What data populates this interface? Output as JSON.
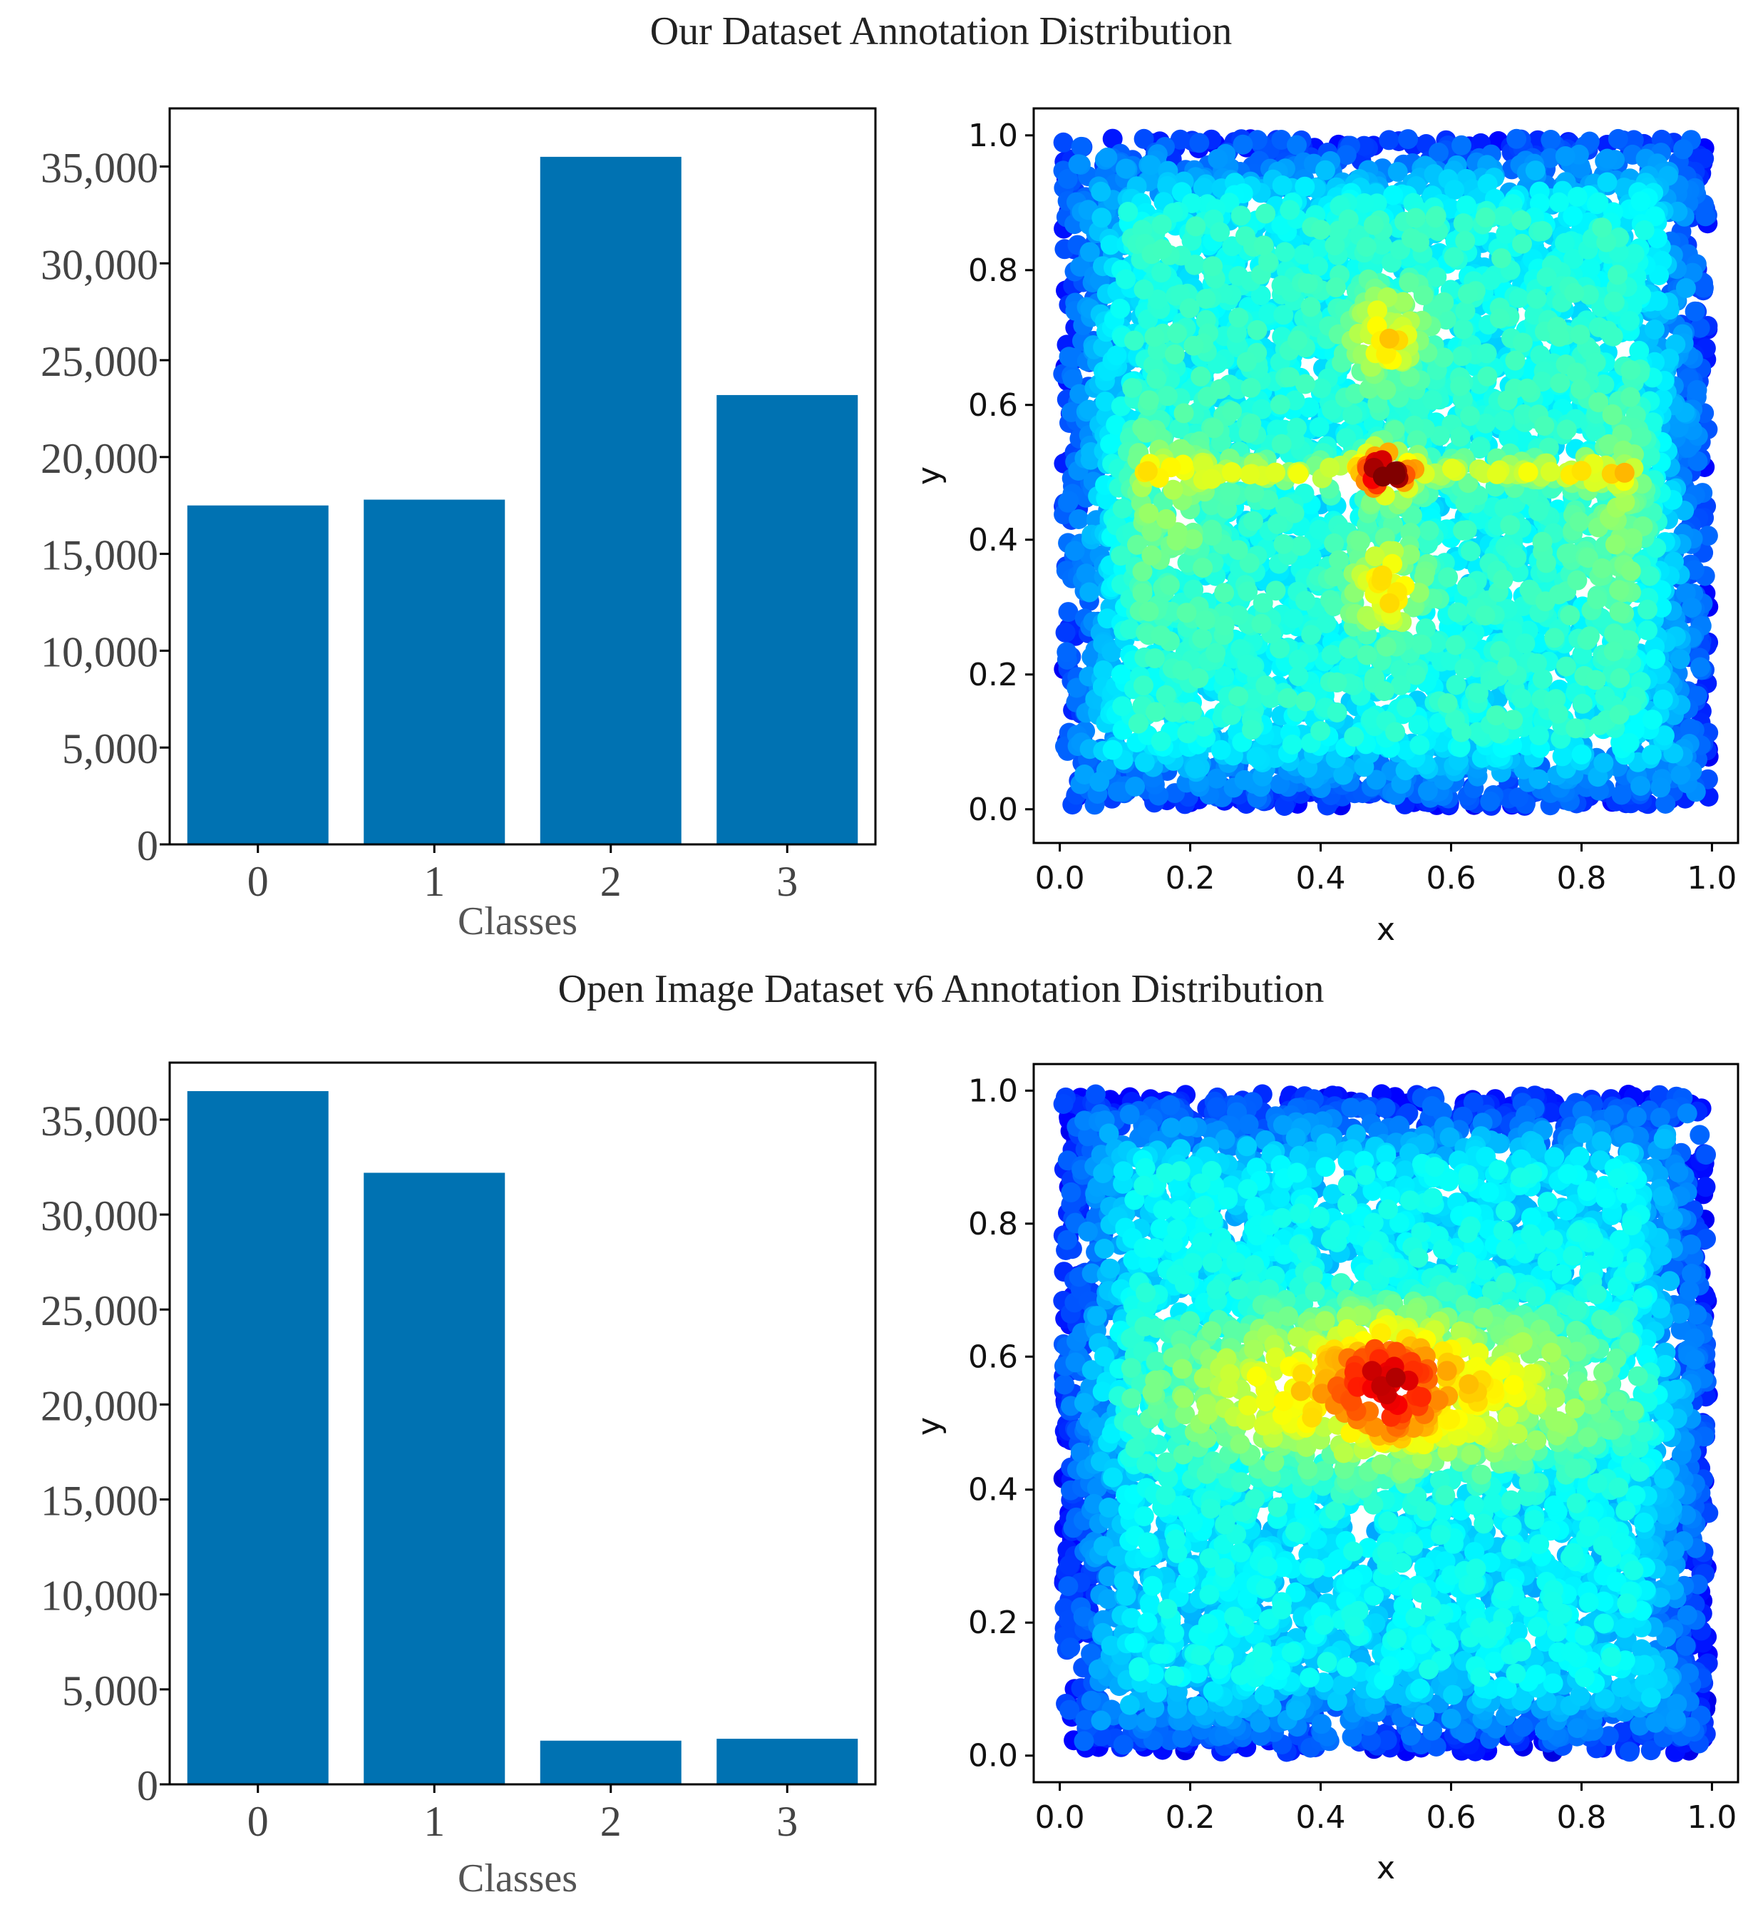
{
  "colors": {
    "bar": "#0072b2",
    "axis": "#000000"
  },
  "chart_data": [
    {
      "id": "top-bar",
      "type": "bar",
      "title": "Our Dataset Annotation Distribution",
      "xlabel": "Classes",
      "ylabel": "",
      "categories": [
        "0",
        "1",
        "2",
        "3"
      ],
      "values": [
        17500,
        17800,
        35500,
        23200
      ],
      "ylim": [
        0,
        38000
      ],
      "yticks": [
        0,
        5000,
        10000,
        15000,
        20000,
        25000,
        30000,
        35000
      ],
      "ytick_labels": [
        "0",
        "5,000",
        "10,000",
        "15,000",
        "20,000",
        "25,000",
        "30,000",
        "35,000"
      ]
    },
    {
      "id": "top-scatter",
      "type": "scatter",
      "xlabel": "x",
      "ylabel": "y",
      "xlim": [
        -0.04,
        1.04
      ],
      "ylim": [
        -0.05,
        1.04
      ],
      "xticks": [
        0.0,
        0.2,
        0.4,
        0.6,
        0.8,
        1.0
      ],
      "xtick_labels": [
        "0.0",
        "0.2",
        "0.4",
        "0.6",
        "0.8",
        "1.0"
      ],
      "yticks": [
        0.0,
        0.2,
        0.4,
        0.6,
        0.8,
        1.0
      ],
      "ytick_labels": [
        "0.0",
        "0.2",
        "0.4",
        "0.6",
        "0.8",
        "1.0"
      ],
      "colormap": "jet",
      "points": "dense uniform cloud over [0,1]x[0,1] colored by local density; hot cross-shaped spot centred at (0.5, 0.5)",
      "density_peak": [
        0.5,
        0.5
      ]
    },
    {
      "id": "bottom-bar",
      "type": "bar",
      "title": "Open Image Dataset v6 Annotation Distribution",
      "xlabel": "Classes",
      "ylabel": "",
      "categories": [
        "0",
        "1",
        "2",
        "3"
      ],
      "values": [
        36500,
        32200,
        2300,
        2400
      ],
      "ylim": [
        0,
        38000
      ],
      "yticks": [
        0,
        5000,
        10000,
        15000,
        20000,
        25000,
        30000,
        35000
      ],
      "ytick_labels": [
        "0",
        "5,000",
        "10,000",
        "15,000",
        "20,000",
        "25,000",
        "30,000",
        "35,000"
      ]
    },
    {
      "id": "bottom-scatter",
      "type": "scatter",
      "xlabel": "x",
      "ylabel": "y",
      "xlim": [
        -0.04,
        1.04
      ],
      "ylim": [
        -0.04,
        1.04
      ],
      "xticks": [
        0.0,
        0.2,
        0.4,
        0.6,
        0.8,
        1.0
      ],
      "xtick_labels": [
        "0.0",
        "0.2",
        "0.4",
        "0.6",
        "0.8",
        "1.0"
      ],
      "yticks": [
        0.0,
        0.2,
        0.4,
        0.6,
        0.8,
        1.0
      ],
      "ytick_labels": [
        "0.0",
        "0.2",
        "0.4",
        "0.6",
        "0.8",
        "1.0"
      ],
      "colormap": "jet",
      "points": "dense uniform cloud over [0,1]x[0,1] colored by local density; broad warm horizontal band around y=0.55 peaking near (0.5, 0.55)",
      "density_peak": [
        0.5,
        0.55
      ]
    }
  ]
}
